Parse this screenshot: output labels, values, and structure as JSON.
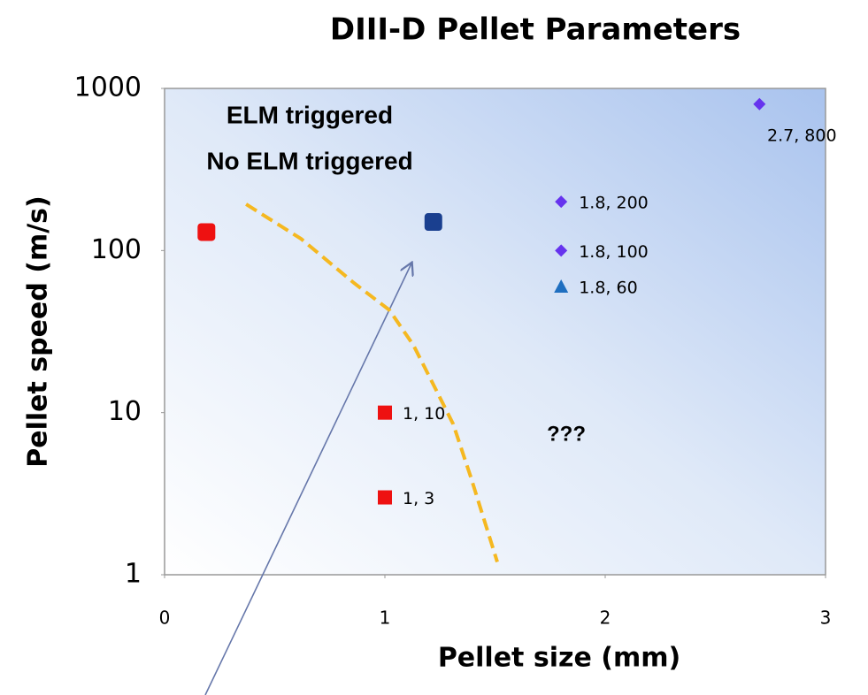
{
  "chart_data": {
    "type": "scatter",
    "title": "DIII-D Pellet Parameters",
    "xlabel": "Pellet size (mm)",
    "ylabel": "Pellet speed (m/s)",
    "xlim": [
      0,
      3
    ],
    "ylim": [
      1,
      1000
    ],
    "log_y": true,
    "xticks": [
      0,
      1,
      2,
      3
    ],
    "yticks": [
      1,
      10,
      100,
      1000
    ],
    "annotations": [
      {
        "text": "ELM triggered",
        "color": "#1010e0"
      },
      {
        "text": "No ELM triggered",
        "color": "#ee1111"
      },
      {
        "text": "???",
        "color": "#f0a030"
      }
    ],
    "points": [
      {
        "x": 2.7,
        "y": 800,
        "label": "2.7, 800",
        "marker": "diamond",
        "color": "#6633ee"
      },
      {
        "x": 1.8,
        "y": 200,
        "label": "1.8, 200",
        "marker": "diamond",
        "color": "#6633ee"
      },
      {
        "x": 1.8,
        "y": 100,
        "label": "1.8, 100",
        "marker": "diamond",
        "color": "#6633ee"
      },
      {
        "x": 1.8,
        "y": 60,
        "label": "1.8, 60",
        "marker": "triangle",
        "color": "#1f6fc0"
      },
      {
        "x": 1,
        "y": 10,
        "label": "1, 10",
        "marker": "square",
        "color": "#ee1111"
      },
      {
        "x": 1,
        "y": 3,
        "label": "1, 3",
        "marker": "square",
        "color": "#ee1111"
      },
      {
        "x": 0.19,
        "y": 130,
        "marker": "big-square",
        "color": "#ee1111"
      },
      {
        "x": 1.22,
        "y": 150,
        "marker": "big-square",
        "color": "#1a3f8f"
      }
    ],
    "curve": {
      "color": "#f5b820",
      "x": [
        0.37,
        0.62,
        0.86,
        1.02,
        1.13,
        1.23,
        1.31,
        1.39,
        1.51
      ],
      "y": [
        193,
        118,
        63,
        43,
        26,
        14,
        8.5,
        4,
        1.2
      ]
    }
  }
}
